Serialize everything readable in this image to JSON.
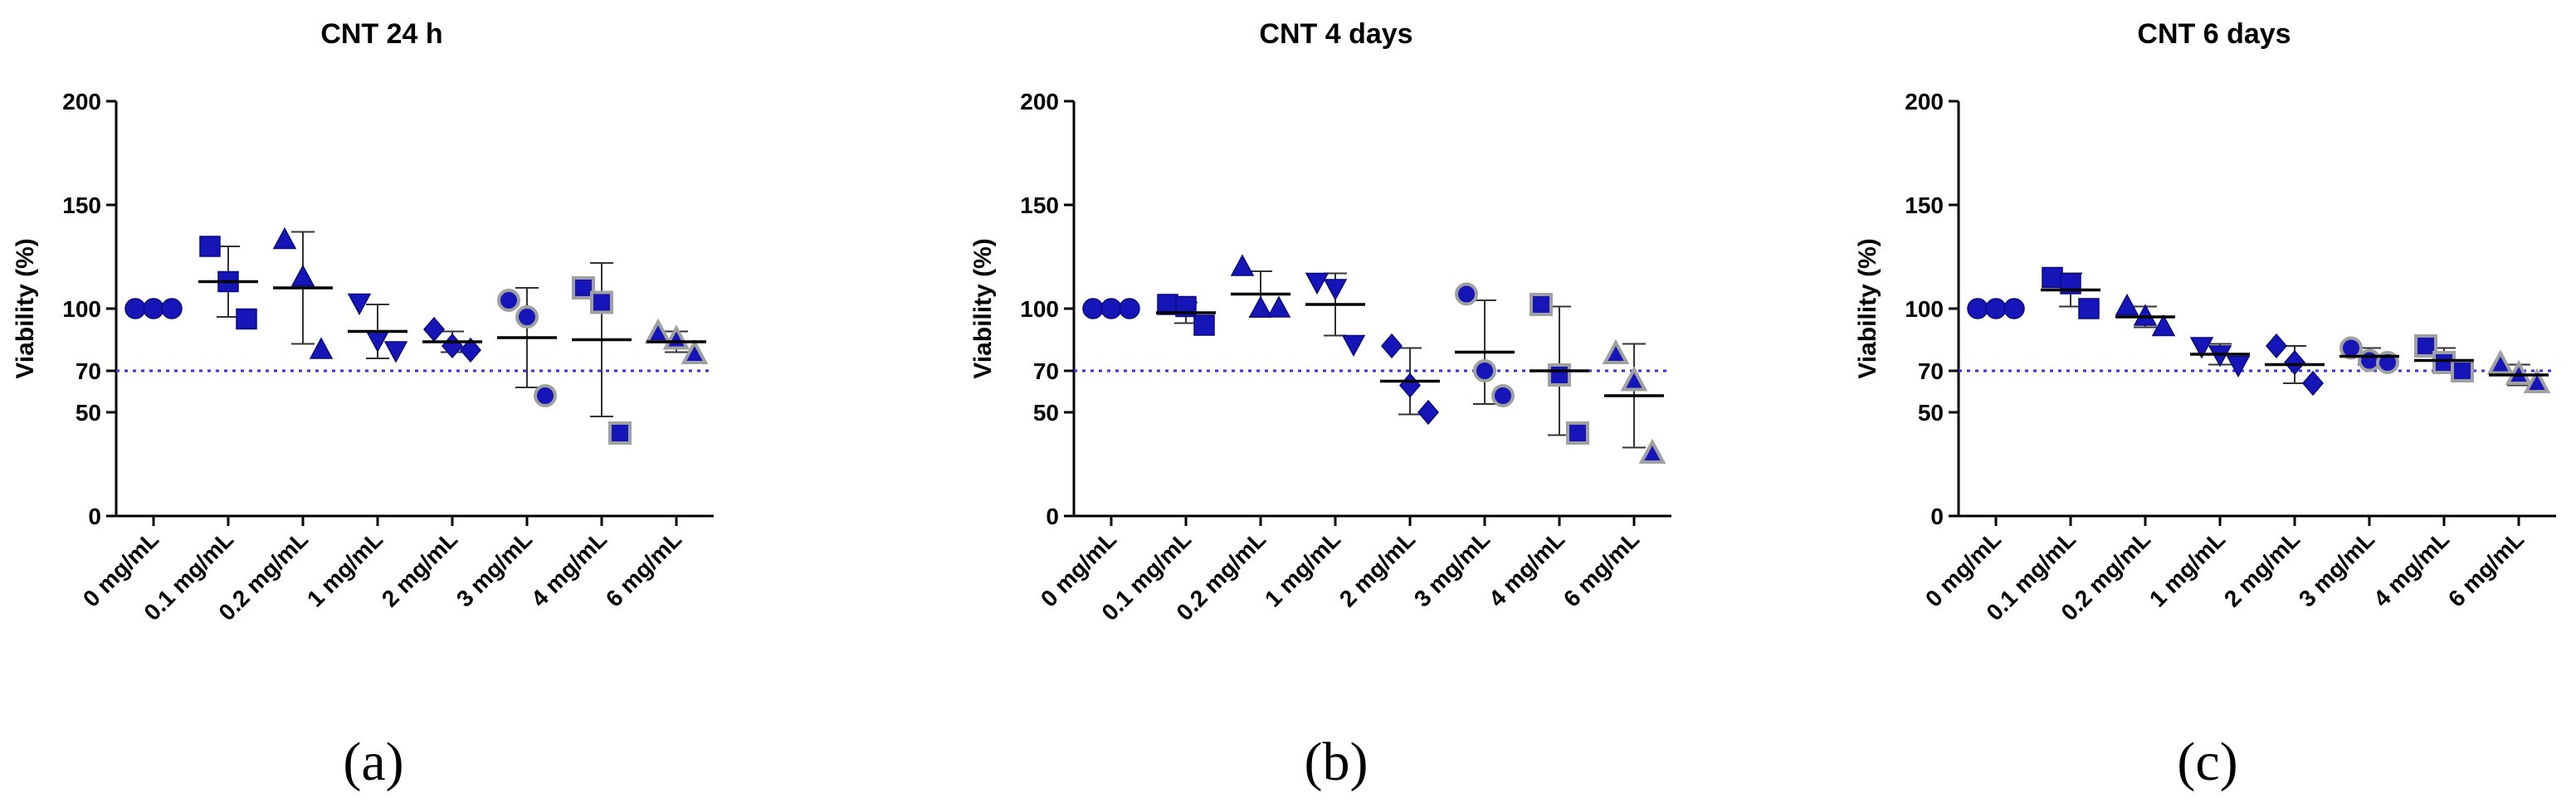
{
  "chart_data": [
    {
      "type": "scatter",
      "title": "CNT 24 h",
      "panel_label": "(a)",
      "xlabel": "",
      "ylabel": "Viability (%)",
      "ylim": [
        0,
        200
      ],
      "yticks": [
        0,
        50,
        70,
        100,
        150,
        200
      ],
      "reference_line": 70,
      "categories": [
        "0 mg/mL",
        "0.1 mg/mL",
        "0.2 mg/mL",
        "1 mg/mL",
        "2 mg/mL",
        "3 mg/mL",
        "4 mg/mL",
        "6 mg/mL"
      ],
      "markers": [
        "circle",
        "square",
        "triangle-up",
        "triangle-down",
        "diamond",
        "circle-gray",
        "square-gray",
        "triangle-gray"
      ],
      "series": [
        {
          "name": "0 mg/mL",
          "values": [
            100,
            100,
            100
          ],
          "mean": 100,
          "sd": 0
        },
        {
          "name": "0.1 mg/mL",
          "values": [
            130,
            113,
            95
          ],
          "mean": 113,
          "sd": 17
        },
        {
          "name": "0.2 mg/mL",
          "values": [
            133,
            115,
            80
          ],
          "mean": 110,
          "sd": 27
        },
        {
          "name": "1 mg/mL",
          "values": [
            103,
            85,
            80
          ],
          "mean": 89,
          "sd": 13
        },
        {
          "name": "2 mg/mL",
          "values": [
            90,
            82,
            80
          ],
          "mean": 84,
          "sd": 5
        },
        {
          "name": "3 mg/mL",
          "values": [
            104,
            96,
            58
          ],
          "mean": 86,
          "sd": 24
        },
        {
          "name": "4 mg/mL",
          "values": [
            110,
            103,
            40
          ],
          "mean": 85,
          "sd": 37
        },
        {
          "name": "6 mg/mL",
          "values": [
            88,
            85,
            78
          ],
          "mean": 84,
          "sd": 5
        }
      ]
    },
    {
      "type": "scatter",
      "title": "CNT 4 days",
      "panel_label": "(b)",
      "xlabel": "",
      "ylabel": "Viability (%)",
      "ylim": [
        0,
        200
      ],
      "yticks": [
        0,
        50,
        70,
        100,
        150,
        200
      ],
      "reference_line": 70,
      "categories": [
        "0 mg/mL",
        "0.1 mg/mL",
        "0.2 mg/mL",
        "1 mg/mL",
        "2 mg/mL",
        "3 mg/mL",
        "4 mg/mL",
        "6 mg/mL"
      ],
      "markers": [
        "circle",
        "square",
        "triangle-up",
        "triangle-down",
        "diamond",
        "circle-gray",
        "square-gray",
        "triangle-gray"
      ],
      "series": [
        {
          "name": "0 mg/mL",
          "values": [
            100,
            100,
            100
          ],
          "mean": 100,
          "sd": 0
        },
        {
          "name": "0.1 mg/mL",
          "values": [
            102,
            101,
            92
          ],
          "mean": 98,
          "sd": 5
        },
        {
          "name": "0.2 mg/mL",
          "values": [
            120,
            100,
            100
          ],
          "mean": 107,
          "sd": 11
        },
        {
          "name": "1 mg/mL",
          "values": [
            113,
            110,
            83
          ],
          "mean": 102,
          "sd": 15
        },
        {
          "name": "2 mg/mL",
          "values": [
            82,
            63,
            50
          ],
          "mean": 65,
          "sd": 16
        },
        {
          "name": "3 mg/mL",
          "values": [
            107,
            70,
            58
          ],
          "mean": 79,
          "sd": 25
        },
        {
          "name": "4 mg/mL",
          "values": [
            102,
            68,
            40
          ],
          "mean": 70,
          "sd": 31
        },
        {
          "name": "6 mg/mL",
          "values": [
            78,
            65,
            30
          ],
          "mean": 58,
          "sd": 25
        }
      ]
    },
    {
      "type": "scatter",
      "title": "CNT 6 days",
      "panel_label": "(c)",
      "xlabel": "",
      "ylabel": "Viability (%)",
      "ylim": [
        0,
        200
      ],
      "yticks": [
        0,
        50,
        70,
        100,
        150,
        200
      ],
      "reference_line": 70,
      "categories": [
        "0 mg/mL",
        "0.1 mg/mL",
        "0.2 mg/mL",
        "1 mg/mL",
        "2 mg/mL",
        "3 mg/mL",
        "4 mg/mL",
        "6 mg/mL"
      ],
      "markers": [
        "circle",
        "square",
        "triangle-up",
        "triangle-down",
        "diamond",
        "circle-gray",
        "square-gray",
        "triangle-gray"
      ],
      "series": [
        {
          "name": "0 mg/mL",
          "values": [
            100,
            100,
            100
          ],
          "mean": 100,
          "sd": 0
        },
        {
          "name": "0.1 mg/mL",
          "values": [
            115,
            112,
            100
          ],
          "mean": 109,
          "sd": 8
        },
        {
          "name": "0.2 mg/mL",
          "values": [
            101,
            96,
            91
          ],
          "mean": 96,
          "sd": 5
        },
        {
          "name": "1 mg/mL",
          "values": [
            82,
            78,
            73
          ],
          "mean": 78,
          "sd": 5
        },
        {
          "name": "2 mg/mL",
          "values": [
            82,
            74,
            64
          ],
          "mean": 73,
          "sd": 9
        },
        {
          "name": "3 mg/mL",
          "values": [
            81,
            75,
            74
          ],
          "mean": 77,
          "sd": 4
        },
        {
          "name": "4 mg/mL",
          "values": [
            82,
            74,
            70
          ],
          "mean": 75,
          "sd": 6
        },
        {
          "name": "6 mg/mL",
          "values": [
            73,
            68,
            64
          ],
          "mean": 68,
          "sd": 5
        }
      ]
    }
  ],
  "colors": {
    "marker_blue": "#1515b8",
    "marker_edge": "#0a0a80",
    "gray_edge": "#a0a0a0",
    "reference_line": "#3333dd",
    "axis": "#000000",
    "error_bar": "#333333"
  }
}
